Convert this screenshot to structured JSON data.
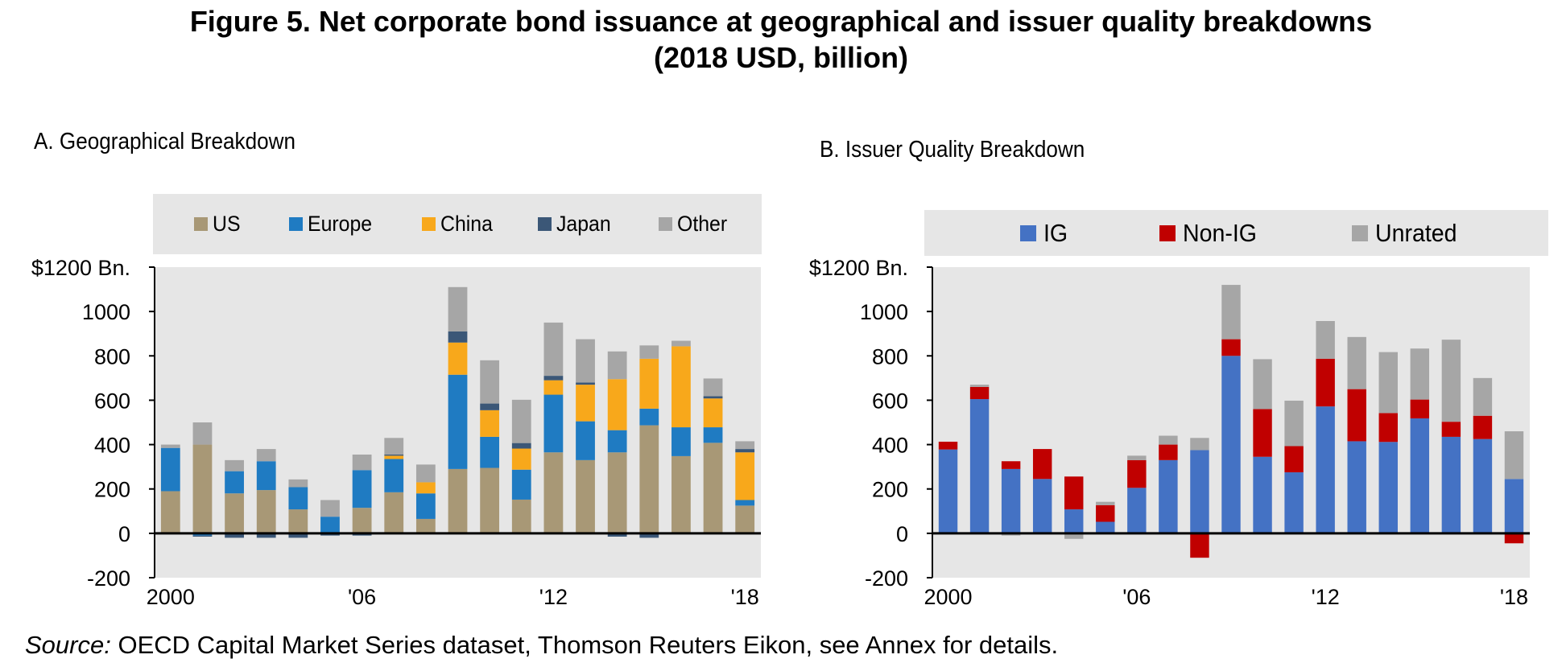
{
  "figure": {
    "title_line1": "Figure 5. Net corporate bond issuance at geographical and issuer quality breakdowns",
    "title_line2": "(2018 USD, billion)"
  },
  "source": {
    "label": "Source:",
    "text": " OECD Capital Market Series dataset, Thomson Reuters Eikon, see Annex for details."
  },
  "colors": {
    "US": "#a89876",
    "Europe": "#1f7bc2",
    "China": "#f8a81b",
    "Japan": "#3b5777",
    "Other": "#a6a6a6",
    "IG": "#4472c4",
    "Non-IG": "#c00000",
    "Unrated": "#a6a6a6",
    "legend_bg": "#e6e6e6",
    "plot_bg": "#e6e6e6"
  },
  "chart_data": [
    {
      "type": "bar",
      "stacked": true,
      "title": "A. Geographical Breakdown",
      "legend_position": "top",
      "categories": [
        "2000",
        "2001",
        "2002",
        "2003",
        "2004",
        "2005",
        "2006",
        "2007",
        "2008",
        "2009",
        "2010",
        "2011",
        "2012",
        "2013",
        "2014",
        "2015",
        "2016",
        "2017",
        "2018"
      ],
      "tick_labels": [
        "2000",
        "'06",
        "'12",
        "'18"
      ],
      "tick_label_positions": [
        "2000",
        "2006",
        "2012",
        "2018"
      ],
      "y_tick_labels": [
        "$1200 Bn.",
        "1000",
        "800",
        "600",
        "400",
        "200",
        "0",
        "-200"
      ],
      "y_ticks": [
        1200,
        1000,
        800,
        600,
        400,
        200,
        0,
        -200
      ],
      "ylim": [
        -200,
        1200
      ],
      "xlabel": "",
      "ylabel": "",
      "series": [
        {
          "name": "US",
          "values": [
            190,
            400,
            180,
            195,
            108,
            5,
            115,
            185,
            65,
            290,
            295,
            152,
            365,
            330,
            365,
            487,
            348,
            408,
            125
          ]
        },
        {
          "name": "Europe",
          "values": [
            195,
            -10,
            100,
            130,
            100,
            70,
            170,
            150,
            115,
            425,
            140,
            135,
            260,
            175,
            100,
            75,
            130,
            70,
            25
          ]
        },
        {
          "name": "China",
          "values": [
            0,
            0,
            0,
            0,
            0,
            0,
            0,
            15,
            50,
            145,
            120,
            95,
            65,
            165,
            230,
            225,
            365,
            130,
            215
          ]
        },
        {
          "name": "Japan",
          "values": [
            0,
            -5,
            -20,
            -20,
            -20,
            -10,
            -10,
            5,
            0,
            50,
            30,
            25,
            20,
            10,
            -15,
            -20,
            0,
            10,
            15
          ]
        },
        {
          "name": "Other",
          "values": [
            15,
            100,
            50,
            55,
            35,
            75,
            70,
            75,
            80,
            200,
            195,
            195,
            240,
            195,
            125,
            60,
            25,
            80,
            35
          ]
        }
      ]
    },
    {
      "type": "bar",
      "stacked": true,
      "title": "B. Issuer Quality Breakdown",
      "legend_position": "top",
      "categories": [
        "2000",
        "2001",
        "2002",
        "2003",
        "2004",
        "2005",
        "2006",
        "2007",
        "2008",
        "2009",
        "2010",
        "2011",
        "2012",
        "2013",
        "2014",
        "2015",
        "2016",
        "2017",
        "2018"
      ],
      "tick_labels": [
        "2000",
        "'06",
        "'12",
        "'18"
      ],
      "tick_label_positions": [
        "2000",
        "2006",
        "2012",
        "2018"
      ],
      "y_tick_labels": [
        "$1200 Bn.",
        "1000",
        "800",
        "600",
        "400",
        "200",
        "0",
        "-200"
      ],
      "y_ticks": [
        1200,
        1000,
        800,
        600,
        400,
        200,
        0,
        -200
      ],
      "ylim": [
        -200,
        1200
      ],
      "xlabel": "",
      "ylabel": "",
      "series": [
        {
          "name": "IG",
          "values": [
            378,
            605,
            290,
            245,
            108,
            52,
            205,
            330,
            375,
            800,
            345,
            275,
            572,
            415,
            412,
            518,
            435,
            425,
            245
          ]
        },
        {
          "name": "Non-IG",
          "values": [
            35,
            55,
            35,
            135,
            148,
            75,
            125,
            70,
            -110,
            75,
            215,
            118,
            215,
            235,
            130,
            85,
            68,
            105,
            -45
          ]
        },
        {
          "name": "Unrated",
          "values": [
            0,
            10,
            -10,
            0,
            -25,
            15,
            20,
            40,
            55,
            245,
            225,
            205,
            170,
            235,
            275,
            230,
            370,
            170,
            215
          ]
        }
      ]
    }
  ]
}
